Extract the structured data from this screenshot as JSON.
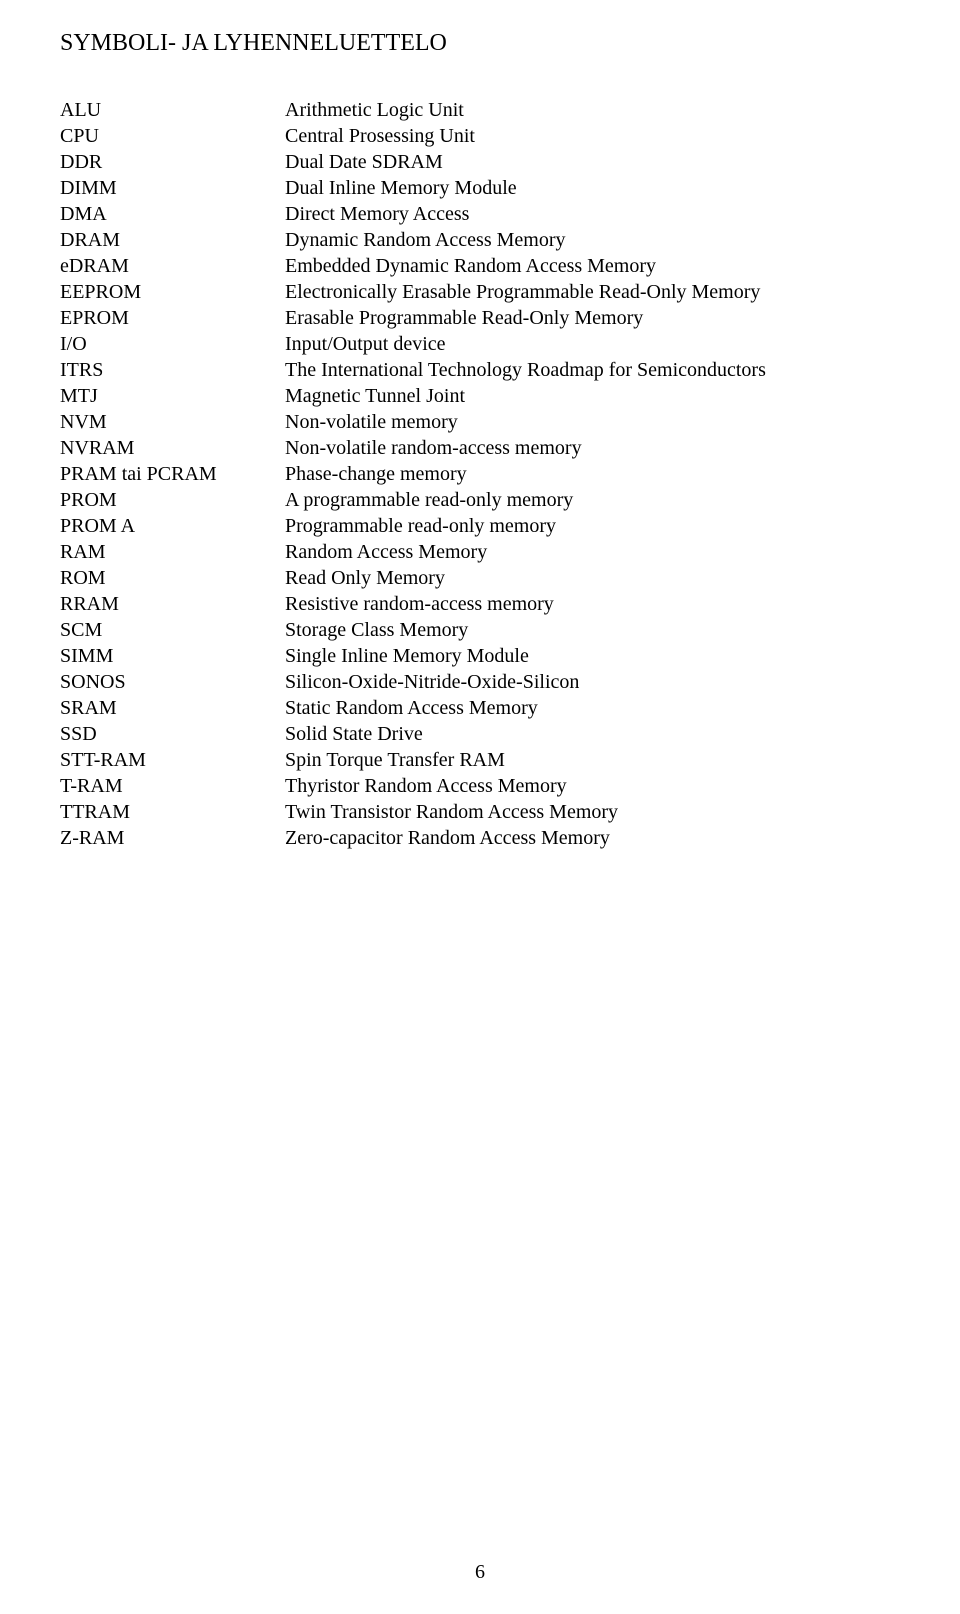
{
  "heading": "SYMBOLI- JA LYHENNELUETTELO",
  "page_number": "6",
  "entries": [
    {
      "abbr": "ALU",
      "def": "Arithmetic Logic Unit"
    },
    {
      "abbr": "CPU",
      "def": "Central Prosessing Unit"
    },
    {
      "abbr": "DDR",
      "def": "Dual Date SDRAM"
    },
    {
      "abbr": "DIMM",
      "def": "Dual Inline Memory Module"
    },
    {
      "abbr": "DMA",
      "def": "Direct Memory Access"
    },
    {
      "abbr": "DRAM",
      "def": "Dynamic Random Access Memory"
    },
    {
      "abbr": "eDRAM",
      "def": "Embedded Dynamic Random Access Memory"
    },
    {
      "abbr": "EEPROM",
      "def": "Electronically Erasable Programmable Read-Only Memory"
    },
    {
      "abbr": "EPROM",
      "def": "Erasable Programmable Read-Only Memory"
    },
    {
      "abbr": "I/O",
      "def": "Input/Output device"
    },
    {
      "abbr": "ITRS",
      "def": "The International Technology Roadmap for Semiconductors"
    },
    {
      "abbr": "MTJ",
      "def": "Magnetic Tunnel Joint"
    },
    {
      "abbr": "NVM",
      "def": "Non-volatile memory"
    },
    {
      "abbr": "NVRAM",
      "def": "Non-volatile random-access memory"
    },
    {
      "abbr": "PRAM tai PCRAM",
      "def": "Phase-change memory"
    },
    {
      "abbr": "PROM",
      "def": "A programmable read-only memory"
    },
    {
      "abbr": "PROM A",
      "def": "Programmable read-only memory"
    },
    {
      "abbr": "RAM",
      "def": "Random Access Memory"
    },
    {
      "abbr": "ROM",
      "def": "Read Only Memory"
    },
    {
      "abbr": "RRAM",
      "def": "Resistive random-access memory"
    },
    {
      "abbr": "SCM",
      "def": "Storage Class Memory"
    },
    {
      "abbr": "SIMM",
      "def": "Single Inline Memory Module"
    },
    {
      "abbr": "SONOS",
      "def": "Silicon-Oxide-Nitride-Oxide-Silicon"
    },
    {
      "abbr": "SRAM",
      "def": "Static Random Access Memory"
    },
    {
      "abbr": "SSD",
      "def": "Solid State Drive"
    },
    {
      "abbr": "STT-RAM",
      "def": "Spin Torque Transfer RAM"
    },
    {
      "abbr": "T-RAM",
      "def": "Thyristor Random Access Memory"
    },
    {
      "abbr": "TTRAM",
      "def": "Twin Transistor Random Access Memory"
    },
    {
      "abbr": "Z-RAM",
      "def": "Zero-capacitor Random Access Memory"
    }
  ]
}
